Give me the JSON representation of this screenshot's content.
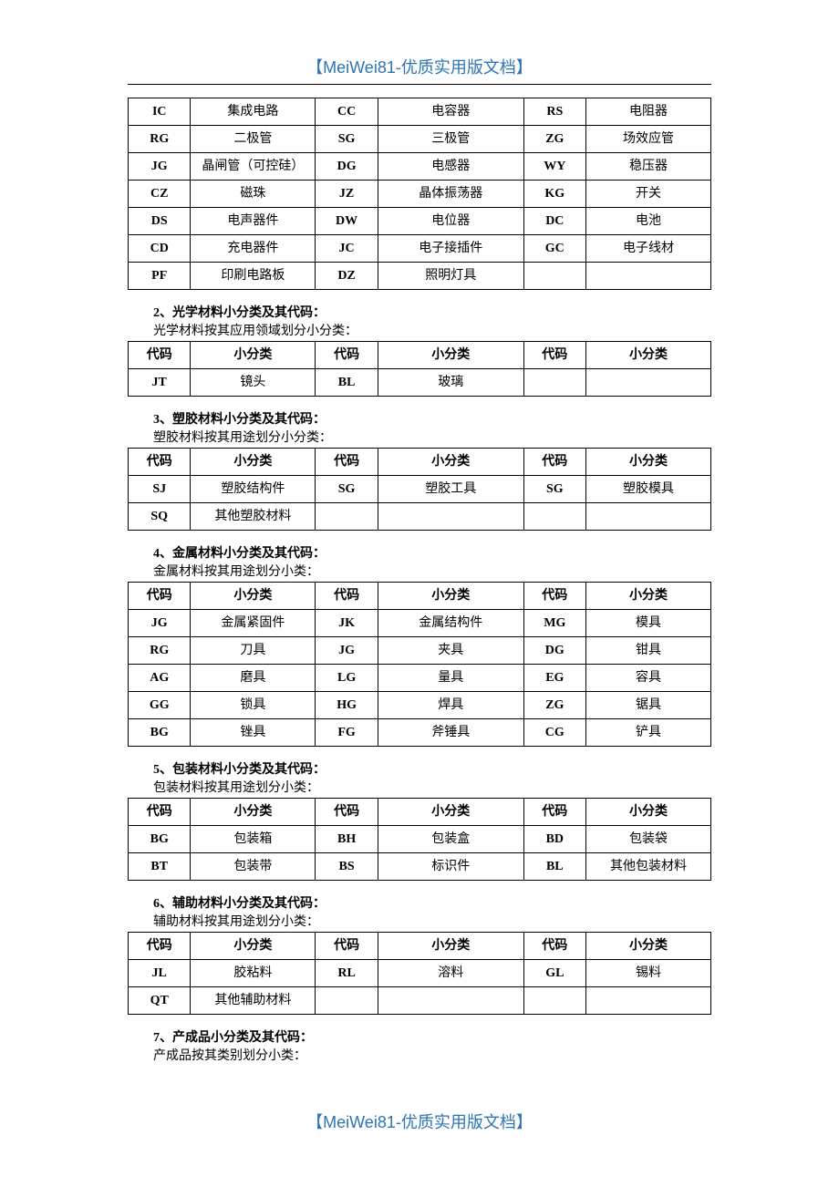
{
  "header": "【MeiWei81-优质实用版文档】",
  "footer": "【MeiWei81-优质实用版文档】",
  "col_labels": {
    "code": "代码",
    "cat": "小分类"
  },
  "sections": [
    {
      "rows": [
        [
          "IC",
          "集成电路",
          "CC",
          "电容器",
          "RS",
          "电阻器"
        ],
        [
          "RG",
          "二极管",
          "SG",
          "三极管",
          "ZG",
          "场效应管"
        ],
        [
          "JG",
          "晶闸管（可控硅）",
          "DG",
          "电感器",
          "WY",
          "稳压器"
        ],
        [
          "CZ",
          "磁珠",
          "JZ",
          "晶体振荡器",
          "KG",
          "开关"
        ],
        [
          "DS",
          "电声器件",
          "DW",
          "电位器",
          "DC",
          "电池"
        ],
        [
          "CD",
          "充电器件",
          "JC",
          "电子接插件",
          "GC",
          "电子线材"
        ],
        [
          "PF",
          "印刷电路板",
          "DZ",
          "照明灯具",
          "",
          ""
        ]
      ]
    },
    {
      "title": "2、光学材料小分类及其代码：",
      "desc": "光学材料按其应用领域划分小分类：",
      "header": true,
      "rows": [
        [
          "JT",
          "镜头",
          "BL",
          "玻璃",
          "",
          ""
        ]
      ]
    },
    {
      "title": "3、塑胶材料小分类及其代码：",
      "desc": "塑胶材料按其用途划分小分类：",
      "header": true,
      "rows": [
        [
          "SJ",
          "塑胶结构件",
          "SG",
          "塑胶工具",
          "SG",
          "塑胶模具"
        ],
        [
          "SQ",
          "其他塑胶材料",
          "",
          "",
          "",
          ""
        ]
      ]
    },
    {
      "title": "4、金属材料小分类及其代码：",
      "desc": "金属材料按其用途划分小类：",
      "header": true,
      "rows": [
        [
          "JG",
          "金属紧固件",
          "JK",
          "金属结构件",
          "MG",
          "模具"
        ],
        [
          "RG",
          "刀具",
          "JG",
          "夹具",
          "DG",
          "钳具"
        ],
        [
          "AG",
          "磨具",
          "LG",
          "量具",
          "EG",
          "容具"
        ],
        [
          "GG",
          "锁具",
          "HG",
          "焊具",
          "ZG",
          "锯具"
        ],
        [
          "BG",
          "锉具",
          "FG",
          "斧锤具",
          "CG",
          "铲具"
        ]
      ]
    },
    {
      "title": "5、包装材料小分类及其代码：",
      "desc": "包装材料按其用途划分小类：",
      "header": true,
      "rows": [
        [
          "BG",
          "包装箱",
          "BH",
          "包装盒",
          "BD",
          "包装袋"
        ],
        [
          "BT",
          "包装带",
          "BS",
          "标识件",
          "BL",
          "其他包装材料"
        ]
      ]
    },
    {
      "title": "6、辅助材料小分类及其代码：",
      "desc": "辅助材料按其用途划分小类：",
      "header": true,
      "rows": [
        [
          "JL",
          "胶粘料",
          "RL",
          "溶料",
          "GL",
          "锡料"
        ],
        [
          "QT",
          "其他辅助材料",
          "",
          "",
          "",
          ""
        ]
      ]
    },
    {
      "title": "7、产成品小分类及其代码：",
      "desc": "产成品按其类别划分小类："
    }
  ]
}
